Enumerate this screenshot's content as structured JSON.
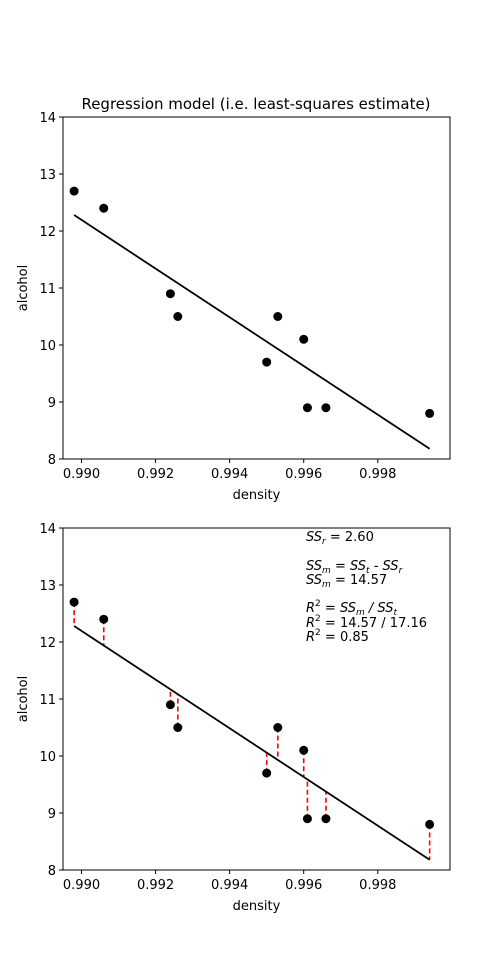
{
  "chart_data": [
    {
      "type": "scatter",
      "title": "Regression model (i.e. least-squares estimate)",
      "xlabel": "density",
      "ylabel": "alcohol",
      "xlim": [
        0.9895,
        0.99995
      ],
      "ylim": [
        8,
        14
      ],
      "xticks": [
        "0.990",
        "0.992",
        "0.994",
        "0.996",
        "0.998"
      ],
      "xtick_values": [
        0.99,
        0.992,
        0.994,
        0.996,
        0.998
      ],
      "yticks": [
        "8",
        "9",
        "10",
        "11",
        "12",
        "13",
        "14"
      ],
      "ytick_values": [
        8,
        9,
        10,
        11,
        12,
        13,
        14
      ],
      "points": {
        "x": [
          0.9898,
          0.9906,
          0.9924,
          0.9926,
          0.995,
          0.9953,
          0.996,
          0.9961,
          0.9966,
          0.9994
        ],
        "y": [
          12.7,
          12.4,
          10.9,
          10.5,
          9.7,
          10.5,
          10.1,
          8.9,
          8.9,
          8.8
        ]
      },
      "regression_line": {
        "x": [
          0.9898,
          0.9994
        ],
        "y": [
          12.28,
          8.18
        ]
      },
      "residuals": false,
      "grid": false
    },
    {
      "type": "scatter",
      "title": "",
      "xlabel": "density",
      "ylabel": "alcohol",
      "xlim": [
        0.9895,
        0.99995
      ],
      "ylim": [
        8,
        14
      ],
      "xticks": [
        "0.990",
        "0.992",
        "0.994",
        "0.996",
        "0.998"
      ],
      "xtick_values": [
        0.99,
        0.992,
        0.994,
        0.996,
        0.998
      ],
      "yticks": [
        "8",
        "9",
        "10",
        "11",
        "12",
        "13",
        "14"
      ],
      "ytick_values": [
        8,
        9,
        10,
        11,
        12,
        13,
        14
      ],
      "points": {
        "x": [
          0.9898,
          0.9906,
          0.9924,
          0.9926,
          0.995,
          0.9953,
          0.996,
          0.9961,
          0.9966,
          0.9994
        ],
        "y": [
          12.7,
          12.4,
          10.9,
          10.5,
          9.7,
          10.5,
          10.1,
          8.9,
          8.9,
          8.8
        ]
      },
      "regression_line": {
        "x": [
          0.9898,
          0.9994
        ],
        "y": [
          12.28,
          8.18
        ]
      },
      "residuals": true,
      "residual_color": "#ff0000",
      "grid": false,
      "annotation": {
        "ssr_label": "SS",
        "ssr_sub": "r",
        "ssr_value": " =   2.60",
        "ssm_def_label": "SS",
        "ssm_def_sub": "m",
        "ssm_def_mid": " = SS",
        "ssm_def_sub2": "t",
        "ssm_def_mid2": " - SS",
        "ssm_def_sub3": "r",
        "ssm_label": "SS",
        "ssm_sub": "m",
        "ssm_value": " =  14.57",
        "r2_def_label": "R",
        "r2_def_sup": "2",
        "r2_def_mid": " = SS",
        "r2_def_sub": "m",
        "r2_def_mid2": " / SS",
        "r2_def_sub2": "t",
        "r2_ratio_label": "R",
        "r2_ratio_sup": "2",
        "r2_ratio_value": " =  14.57  /  17.16",
        "r2_label": "R",
        "r2_sup": "2",
        "r2_value": " =   0.85"
      }
    }
  ]
}
